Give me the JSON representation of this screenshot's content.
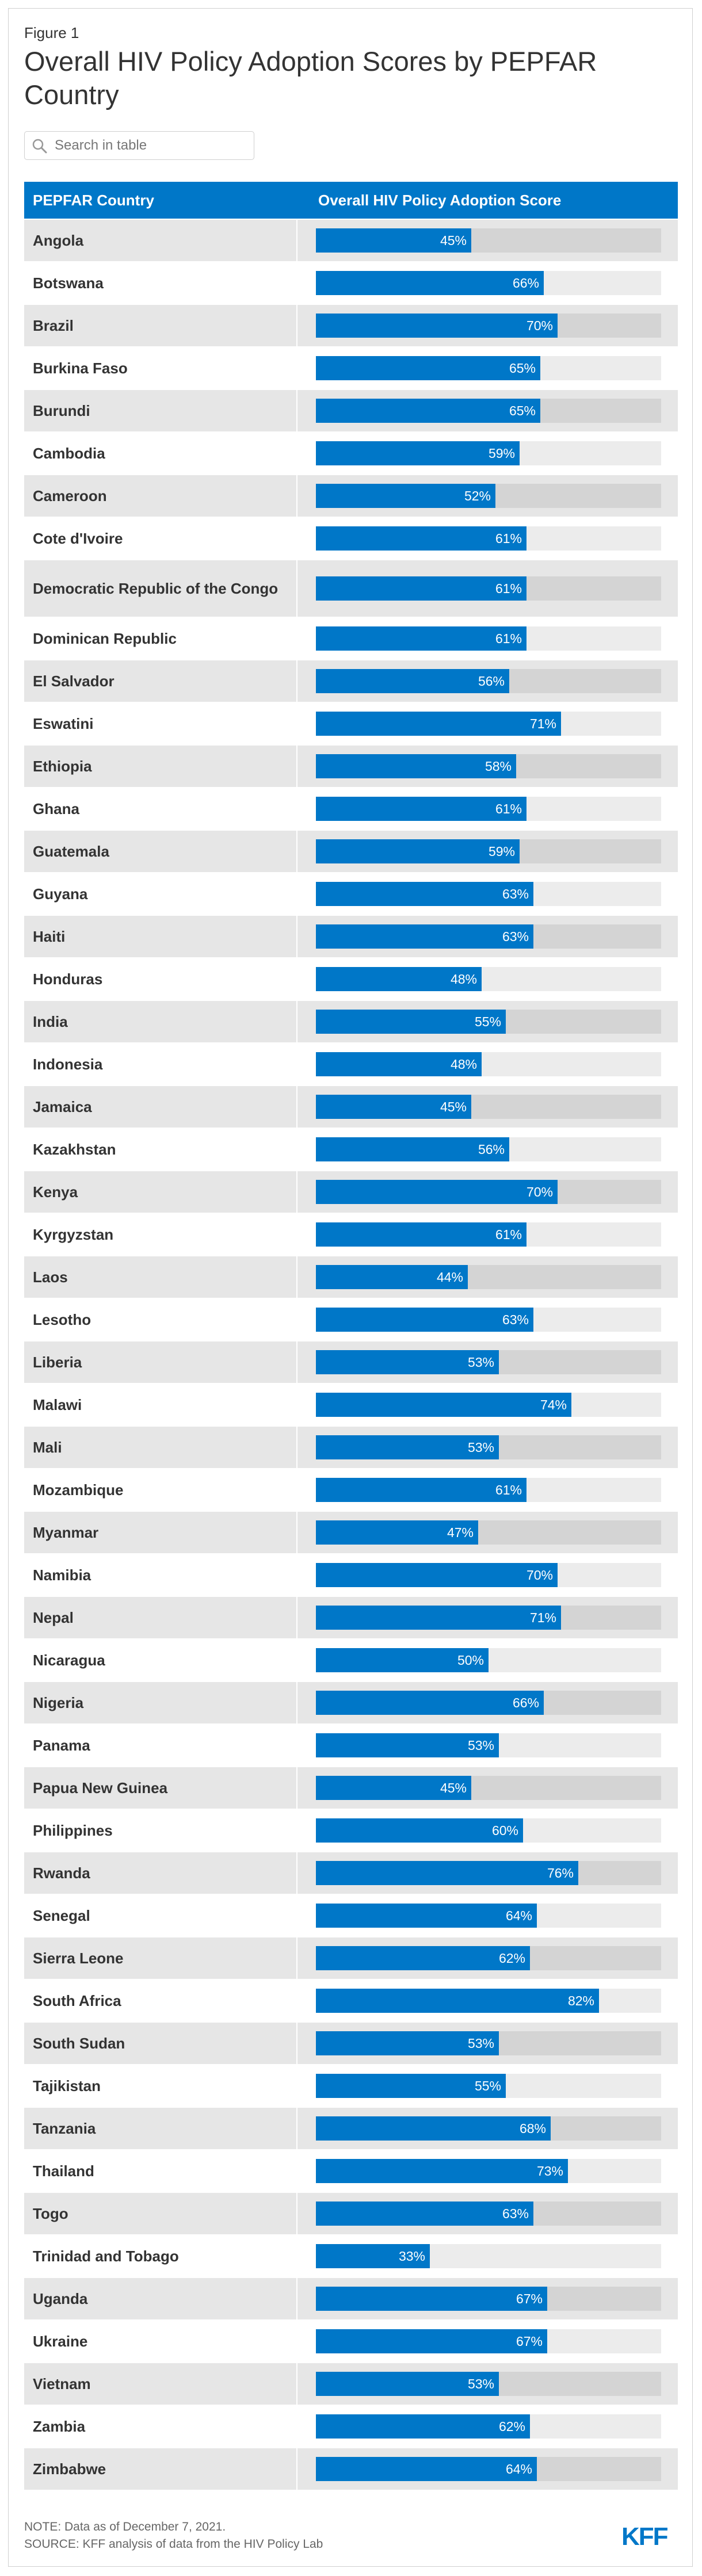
{
  "figure_label": "Figure 1",
  "title": "Overall HIV Policy Adoption Scores by PEPFAR Country",
  "search": {
    "placeholder": "Search in table"
  },
  "logo_text": "KFF",
  "colors": {
    "accent": "#0077c8",
    "row_odd": "#e6e6e6",
    "row_even": "#ffffff",
    "track_odd": "#d4d4d4",
    "track_even": "#ececec"
  },
  "notes": {
    "note": "NOTE: Data as of December 7, 2021.",
    "source": "SOURCE: KFF analysis of data from the HIV Policy Lab"
  },
  "chart_data": {
    "type": "bar",
    "orientation": "horizontal",
    "title": "Overall HIV Policy Adoption Scores by PEPFAR Country",
    "columns": [
      "PEPFAR Country",
      "Overall HIV Policy Adoption Score"
    ],
    "value_suffix": "%",
    "xlim": [
      0,
      100
    ],
    "categories": [
      "Angola",
      "Botswana",
      "Brazil",
      "Burkina Faso",
      "Burundi",
      "Cambodia",
      "Cameroon",
      "Cote d'Ivoire",
      "Democratic Republic of the Congo",
      "Dominican Republic",
      "El Salvador",
      "Eswatini",
      "Ethiopia",
      "Ghana",
      "Guatemala",
      "Guyana",
      "Haiti",
      "Honduras",
      "India",
      "Indonesia",
      "Jamaica",
      "Kazakhstan",
      "Kenya",
      "Kyrgyzstan",
      "Laos",
      "Lesotho",
      "Liberia",
      "Malawi",
      "Mali",
      "Mozambique",
      "Myanmar",
      "Namibia",
      "Nepal",
      "Nicaragua",
      "Nigeria",
      "Panama",
      "Papua New Guinea",
      "Philippines",
      "Rwanda",
      "Senegal",
      "Sierra Leone",
      "South Africa",
      "South Sudan",
      "Tajikistan",
      "Tanzania",
      "Thailand",
      "Togo",
      "Trinidad and Tobago",
      "Uganda",
      "Ukraine",
      "Vietnam",
      "Zambia",
      "Zimbabwe"
    ],
    "values": [
      45,
      66,
      70,
      65,
      65,
      59,
      52,
      61,
      61,
      61,
      56,
      71,
      58,
      61,
      59,
      63,
      63,
      48,
      55,
      48,
      45,
      56,
      70,
      61,
      44,
      63,
      53,
      74,
      53,
      61,
      47,
      70,
      71,
      50,
      66,
      53,
      45,
      60,
      76,
      64,
      62,
      82,
      53,
      55,
      68,
      73,
      63,
      33,
      67,
      67,
      53,
      62,
      64
    ]
  }
}
